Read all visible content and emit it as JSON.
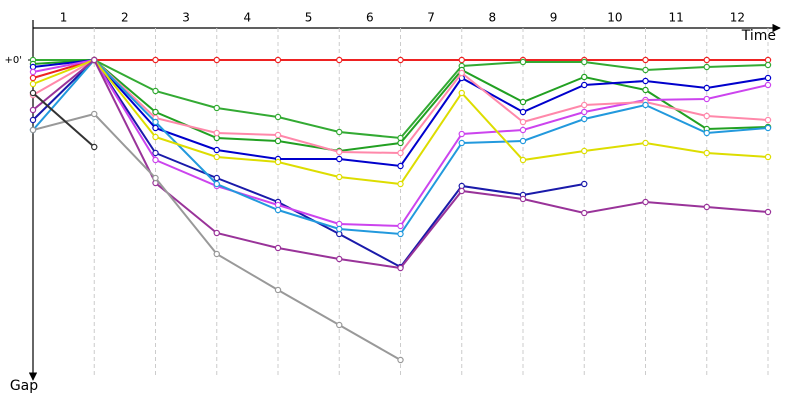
{
  "chart_data": {
    "type": "line",
    "xlabel": "Time",
    "ylabel": "Gap",
    "lap_labels": [
      "1",
      "2",
      "3",
      "4",
      "5",
      "6",
      "7",
      "8",
      "9",
      "10",
      "11",
      "12"
    ],
    "x": [
      0,
      1,
      2,
      3,
      4,
      5,
      6,
      7,
      8,
      9,
      10,
      11,
      12
    ],
    "xlim": [
      0,
      12
    ],
    "ylim": [
      0,
      315
    ],
    "yticks": [
      {
        "value": 0,
        "label": "+0'"
      }
    ],
    "grid": true,
    "series": [
      {
        "color": "#ee2222",
        "values": [
          18,
          0,
          0,
          0,
          0,
          0,
          0,
          0,
          0,
          0,
          0,
          0,
          0
        ]
      },
      {
        "color": "#33aa33",
        "values": [
          0,
          0,
          31,
          48,
          57,
          72,
          78,
          6,
          2,
          2,
          10,
          7,
          5
        ]
      },
      {
        "color": "#22a022",
        "values": [
          4,
          0,
          52,
          78,
          81,
          91,
          83,
          10,
          42,
          17,
          30,
          69,
          67
        ]
      },
      {
        "color": "#0000cc",
        "values": [
          7,
          0,
          68,
          90,
          99,
          99,
          106,
          18,
          52,
          25,
          21,
          28,
          18
        ]
      },
      {
        "color": "#1a1aaa",
        "values": [
          60,
          0,
          93,
          118,
          142,
          174,
          207,
          126,
          135,
          124,
          null,
          null,
          null
        ]
      },
      {
        "color": "#cc44ee",
        "values": [
          12,
          0,
          100,
          126,
          145,
          164,
          166,
          74,
          70,
          52,
          40,
          39,
          25
        ]
      },
      {
        "color": "#ff88aa",
        "values": [
          35,
          0,
          58,
          73,
          75,
          92,
          93,
          13,
          62,
          45,
          42,
          56,
          60
        ]
      },
      {
        "color": "#2299dd",
        "values": [
          70,
          0,
          62,
          124,
          150,
          169,
          174,
          83,
          81,
          59,
          45,
          73,
          68
        ]
      },
      {
        "color": "#dddd00",
        "values": [
          24,
          0,
          77,
          97,
          102,
          117,
          124,
          33,
          100,
          91,
          83,
          93,
          97
        ]
      },
      {
        "color": "#993399",
        "values": [
          50,
          0,
          123,
          173,
          188,
          199,
          208,
          131,
          139,
          153,
          142,
          147,
          152
        ]
      },
      {
        "color": "#999999",
        "values": [
          70,
          54,
          118,
          194,
          230,
          265,
          300,
          null,
          null,
          null,
          null,
          null,
          null
        ]
      },
      {
        "color": "#333333",
        "values": [
          33,
          87,
          null,
          null,
          null,
          null,
          null,
          null,
          null,
          null,
          null,
          null,
          null
        ]
      }
    ]
  }
}
